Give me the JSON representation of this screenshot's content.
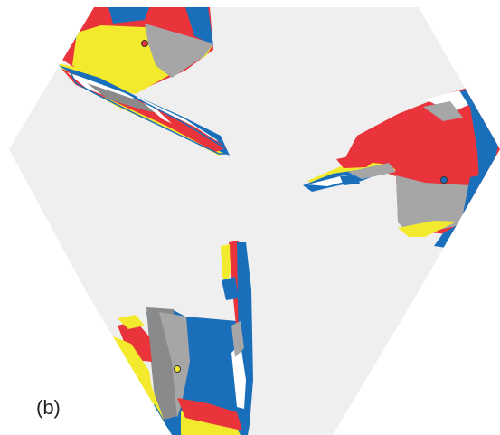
{
  "figure": {
    "panel_label": "(b)"
  },
  "colors": {
    "background_white": "#ffffff",
    "hexagon_fill": "#efefef",
    "red": "#e8343a",
    "blue": "#1a6fbb",
    "yellow": "#f3ea2e",
    "gray": "#a6a6a6",
    "dark_gray": "#8a8a8a",
    "label_text": "#222222"
  },
  "markers": [
    {
      "name": "red-marker",
      "color": "red"
    },
    {
      "name": "blue-marker",
      "color": "blue"
    },
    {
      "name": "yellow-marker",
      "color": "yellow"
    }
  ]
}
